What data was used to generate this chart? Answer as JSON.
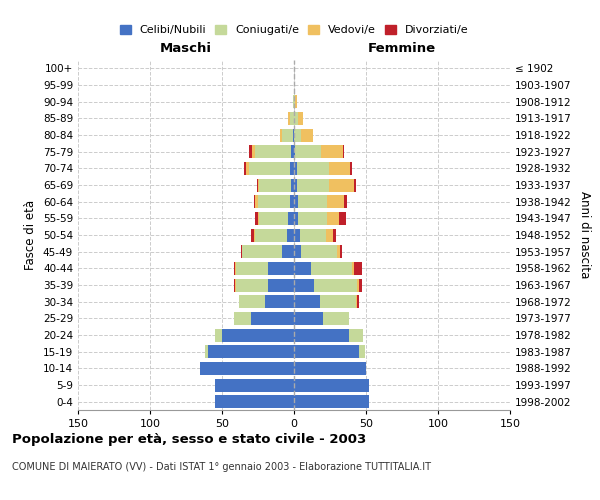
{
  "age_groups": [
    "0-4",
    "5-9",
    "10-14",
    "15-19",
    "20-24",
    "25-29",
    "30-34",
    "35-39",
    "40-44",
    "45-49",
    "50-54",
    "55-59",
    "60-64",
    "65-69",
    "70-74",
    "75-79",
    "80-84",
    "85-89",
    "90-94",
    "95-99",
    "100+"
  ],
  "birth_years": [
    "1998-2002",
    "1993-1997",
    "1988-1992",
    "1983-1987",
    "1978-1982",
    "1973-1977",
    "1968-1972",
    "1963-1967",
    "1958-1962",
    "1953-1957",
    "1948-1952",
    "1943-1947",
    "1938-1942",
    "1933-1937",
    "1928-1932",
    "1923-1927",
    "1918-1922",
    "1913-1917",
    "1908-1912",
    "1903-1907",
    "≤ 1902"
  ],
  "maschi": {
    "celibi": [
      55,
      55,
      65,
      60,
      50,
      30,
      20,
      18,
      18,
      8,
      5,
      4,
      3,
      2,
      3,
      2,
      1,
      0,
      0,
      0,
      0
    ],
    "coniugati": [
      0,
      0,
      0,
      2,
      5,
      12,
      18,
      22,
      22,
      28,
      22,
      20,
      22,
      22,
      28,
      25,
      7,
      3,
      1,
      0,
      0
    ],
    "vedovi": [
      0,
      0,
      0,
      0,
      0,
      0,
      0,
      1,
      1,
      0,
      1,
      1,
      2,
      1,
      2,
      2,
      2,
      1,
      0,
      0,
      0
    ],
    "divorziati": [
      0,
      0,
      0,
      0,
      0,
      0,
      0,
      1,
      1,
      1,
      2,
      2,
      1,
      1,
      2,
      2,
      0,
      0,
      0,
      0,
      0
    ]
  },
  "femmine": {
    "nubili": [
      52,
      52,
      50,
      45,
      38,
      20,
      18,
      14,
      12,
      5,
      4,
      3,
      3,
      2,
      2,
      1,
      0,
      0,
      0,
      0,
      0
    ],
    "coniugate": [
      0,
      0,
      0,
      4,
      10,
      18,
      25,
      30,
      28,
      25,
      18,
      20,
      20,
      22,
      22,
      18,
      5,
      3,
      1,
      0,
      0
    ],
    "vedove": [
      0,
      0,
      0,
      0,
      0,
      0,
      1,
      1,
      2,
      2,
      5,
      8,
      12,
      18,
      15,
      15,
      8,
      3,
      1,
      0,
      0
    ],
    "divorziate": [
      0,
      0,
      0,
      0,
      0,
      0,
      1,
      2,
      5,
      1,
      2,
      5,
      2,
      1,
      1,
      1,
      0,
      0,
      0,
      0,
      0
    ]
  },
  "colors": {
    "celibi": "#4472C4",
    "coniugati": "#C5D99A",
    "vedovi": "#F0C060",
    "divorziati": "#C0202A"
  },
  "xlim": 150,
  "title": "Popolazione per età, sesso e stato civile - 2003",
  "subtitle": "COMUNE DI MAIERATO (VV) - Dati ISTAT 1° gennaio 2003 - Elaborazione TUTTITALIA.IT",
  "ylabel_left": "Fasce di età",
  "ylabel_right": "Anni di nascita",
  "xlabel_left": "Maschi",
  "xlabel_right": "Femmine"
}
